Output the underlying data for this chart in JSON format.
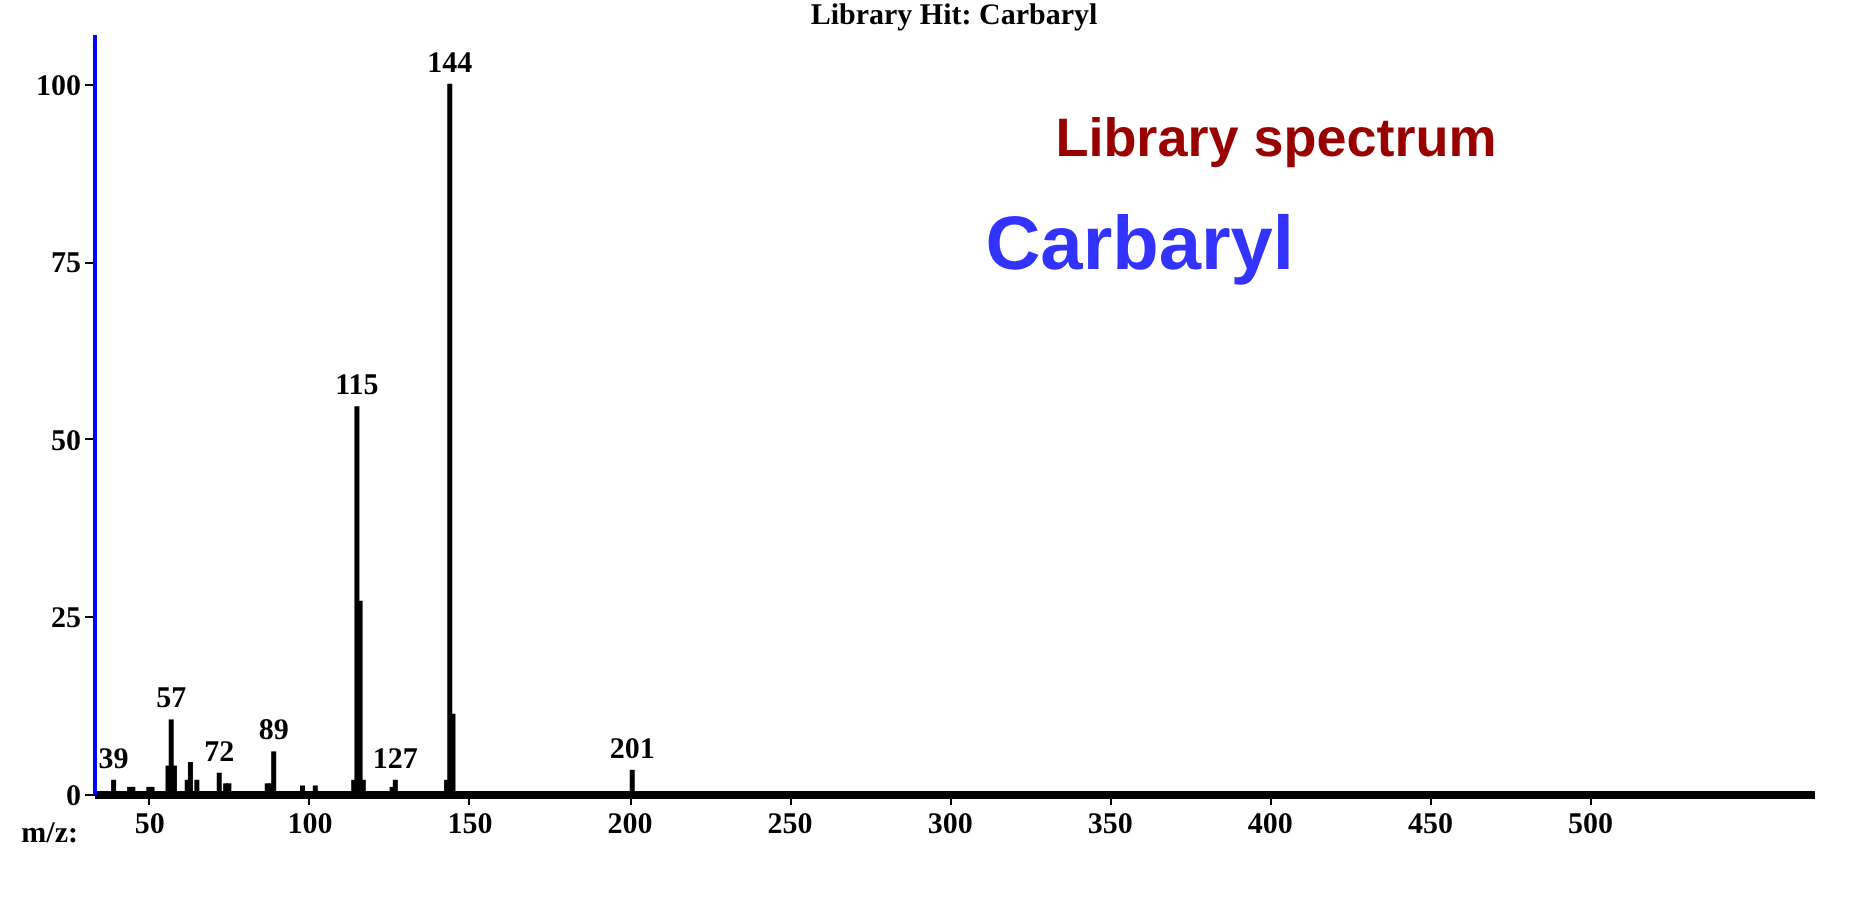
{
  "chart_data": {
    "type": "bar",
    "title": "Library Hit: Carbaryl",
    "xlabel": "m/z:",
    "x": [
      39,
      44,
      45,
      50,
      51,
      56,
      57,
      58,
      62,
      63,
      65,
      72,
      74,
      75,
      87,
      88,
      89,
      98,
      102,
      114,
      115,
      116,
      117,
      126,
      127,
      143,
      144,
      145,
      201
    ],
    "series": [
      {
        "color": "#000000",
        "values": [
          2,
          1,
          1,
          1,
          1,
          4,
          10.5,
          4,
          2,
          4.5,
          2,
          3,
          1.5,
          1.5,
          1.5,
          1.5,
          6,
          1.2,
          1.2,
          2,
          54.6,
          27.2,
          2,
          1,
          2,
          2,
          100,
          11.3,
          3.4
        ]
      }
    ],
    "xlim": [
      36,
      567
    ],
    "xticks": [
      50,
      100,
      150,
      200,
      250,
      300,
      350,
      400,
      450,
      500
    ],
    "ylim": [
      0,
      107
    ],
    "yticks": [
      0,
      25,
      50,
      75,
      100
    ],
    "grid": false,
    "annotations": [
      "Library spectrum",
      "Carbaryl",
      {
        "text": "144",
        "x": 144,
        "y": 100
      },
      {
        "text": "115",
        "x": 115,
        "y": 54.6
      },
      {
        "text": "57",
        "x": 57,
        "y": 10.5
      },
      {
        "text": "39",
        "x": 39,
        "y": 2
      },
      {
        "text": "72",
        "x": 72,
        "y": 3
      },
      {
        "text": "89",
        "x": 89,
        "y": 6
      },
      {
        "text": "127",
        "x": 127,
        "y": 2
      },
      {
        "text": "201",
        "x": 201,
        "y": 3.4
      }
    ]
  }
}
